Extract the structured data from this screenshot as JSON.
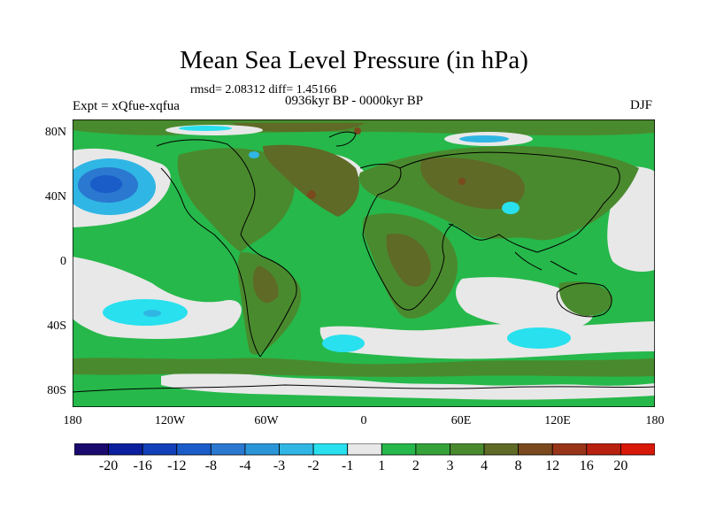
{
  "title": "Mean Sea Level Pressure (in hPa)",
  "stats": "rmsd= 2.08312 diff= 1.45166",
  "experiment": "Expt = xQfue-xqfua",
  "period": "0936kyr BP - 0000kyr BP",
  "season": "DJF",
  "y_axis_labels": [
    "80N",
    "40N",
    "0",
    "40S",
    "80S"
  ],
  "x_axis_labels": [
    "180",
    "120W",
    "60W",
    "0",
    "60E",
    "120E",
    "180"
  ],
  "colorbar": {
    "labels": [
      "-20",
      "-16",
      "-12",
      "-8",
      "-4",
      "-3",
      "-2",
      "-1",
      "1",
      "2",
      "3",
      "4",
      "8",
      "12",
      "16",
      "20"
    ],
    "colors": [
      "#1a0a6e",
      "#0a1e9e",
      "#1240b8",
      "#1a5cc8",
      "#2a78d0",
      "#2a96d8",
      "#30b6e4",
      "#28e0ee",
      "#e8e8e8",
      "#26b84a",
      "#35a33a",
      "#4a8a2e",
      "#5e6a26",
      "#7a4a1e",
      "#983418",
      "#b82010",
      "#d81808"
    ]
  }
}
